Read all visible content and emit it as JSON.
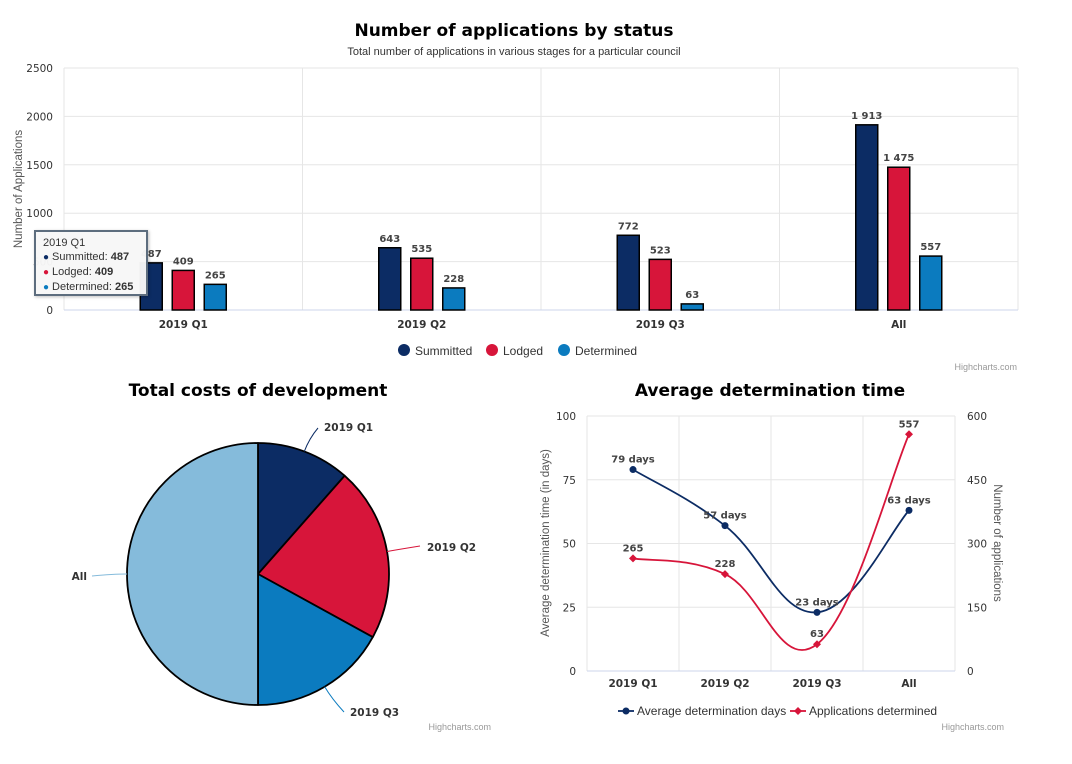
{
  "chart_data": [
    {
      "type": "bar",
      "title": "Number of applications by status",
      "subtitle": "Total number of applications in various stages for a particular council",
      "ylabel": "Number of Applications",
      "ylim": [
        0,
        2500
      ],
      "yticks": [
        "0",
        "500",
        "1000",
        "1500",
        "2000",
        "2500"
      ],
      "categories": [
        "2019 Q1",
        "2019 Q2",
        "2019 Q3",
        "All"
      ],
      "series": [
        {
          "name": "Summitted",
          "values": [
            487,
            643,
            772,
            1913
          ],
          "labels": [
            "487",
            "643",
            "772",
            "1 913"
          ],
          "color": "#0c2c64"
        },
        {
          "name": "Lodged",
          "values": [
            409,
            535,
            523,
            1475
          ],
          "labels": [
            "409",
            "535",
            "523",
            "1 475"
          ],
          "color": "#d7153a"
        },
        {
          "name": "Determined",
          "values": [
            265,
            228,
            63,
            557
          ],
          "labels": [
            "265",
            "228",
            "63",
            "557"
          ],
          "color": "#0b7bbf"
        }
      ],
      "legend": "bottom-center",
      "grid": true,
      "credit": "Highcharts.com",
      "tooltip": {
        "header": "2019 Q1",
        "rows": [
          {
            "name": "Summitted",
            "value": "487",
            "color": "#0c2c64"
          },
          {
            "name": "Lodged",
            "value": "409",
            "color": "#d7153a"
          },
          {
            "name": "Determined",
            "value": "265",
            "color": "#0b7bbf"
          }
        ]
      }
    },
    {
      "type": "pie",
      "title": "Total costs of development",
      "slices": [
        {
          "name": "2019 Q1",
          "value": 11.5,
          "color": "#0c2c64"
        },
        {
          "name": "2019 Q2",
          "value": 21.5,
          "color": "#d7153a"
        },
        {
          "name": "2019 Q3",
          "value": 17.0,
          "color": "#0b7bbf"
        },
        {
          "name": "All",
          "value": 50.0,
          "color": "#85bbdb"
        }
      ],
      "credit": "Highcharts.com"
    },
    {
      "type": "line",
      "title": "Average determination time",
      "categories": [
        "2019 Q1",
        "2019 Q2",
        "2019 Q3",
        "All"
      ],
      "ylabel": "Average determination time (in days)",
      "ylim": [
        0,
        100
      ],
      "yticks": [
        "0",
        "25",
        "50",
        "75",
        "100"
      ],
      "y2label": "Number of applications",
      "y2lim": [
        0,
        600
      ],
      "y2ticks": [
        "0",
        "150",
        "300",
        "450",
        "600"
      ],
      "series": [
        {
          "name": "Average determination days",
          "values": [
            79,
            57,
            23,
            63
          ],
          "labels": [
            "79 days",
            "57 days",
            "23 days",
            "63 days"
          ],
          "color": "#0c2c64",
          "axis": "left"
        },
        {
          "name": "Applications determined",
          "values": [
            265,
            228,
            63,
            557
          ],
          "labels": [
            "265",
            "228",
            "63",
            "557"
          ],
          "color": "#d7153a",
          "axis": "right"
        }
      ],
      "legend": "bottom-center",
      "grid": true,
      "credit": "Highcharts.com"
    }
  ]
}
